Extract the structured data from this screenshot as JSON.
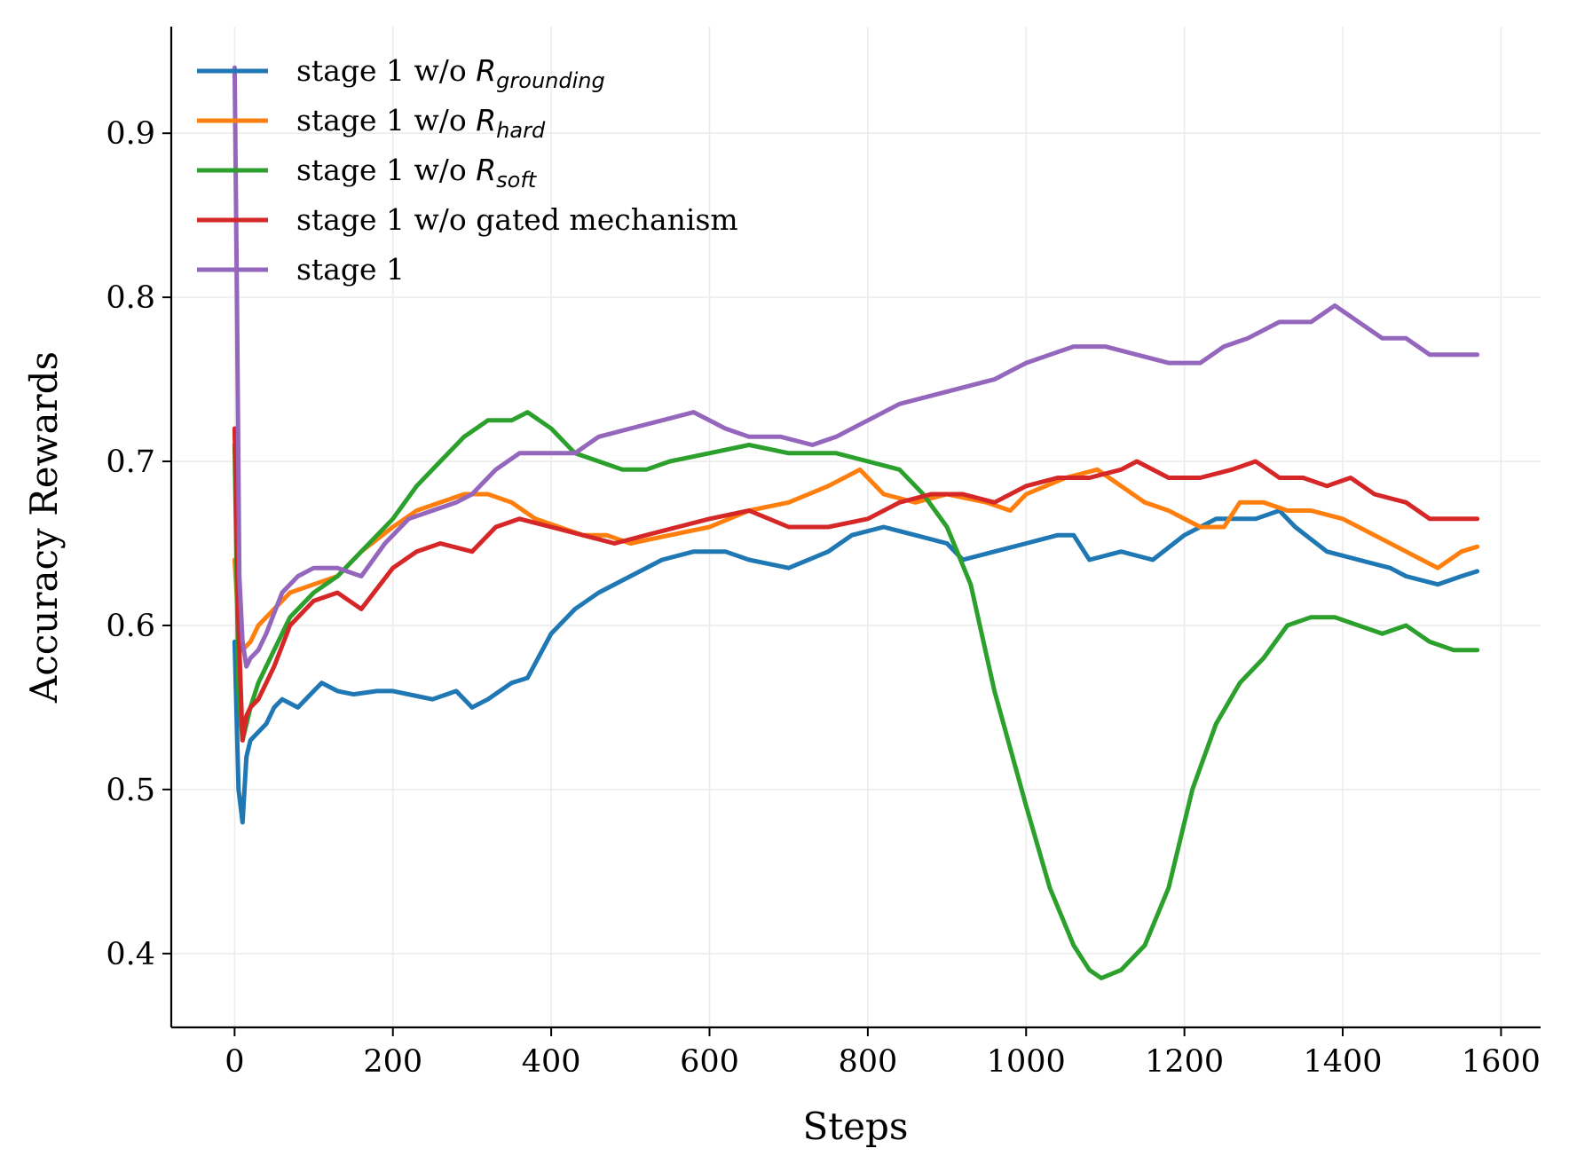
{
  "chart_data": {
    "type": "line",
    "title": "",
    "xlabel": "Steps",
    "ylabel": "Accuracy Rewards",
    "xlim": [
      -80,
      1650
    ],
    "ylim": [
      0.355,
      0.965
    ],
    "xticks": [
      0,
      200,
      400,
      600,
      800,
      1000,
      1200,
      1400,
      1600
    ],
    "xtick_labels": [
      "0",
      "200",
      "400",
      "600",
      "800",
      "1000",
      "1200",
      "1400",
      "1600"
    ],
    "yticks": [
      0.4,
      0.5,
      0.6,
      0.7,
      0.8,
      0.9
    ],
    "ytick_labels": [
      "0.4",
      "0.5",
      "0.6",
      "0.7",
      "0.8",
      "0.9"
    ],
    "grid": true,
    "legend_position": "top-left",
    "series": [
      {
        "name": "stage 1 w/o R_grounding",
        "legend_prefix": "stage 1 w/o ",
        "legend_math": "R",
        "legend_subscript": "grounding",
        "color": "#1f77b4",
        "x": [
          0,
          5,
          10,
          15,
          20,
          30,
          40,
          50,
          60,
          80,
          100,
          110,
          130,
          150,
          180,
          200,
          230,
          250,
          280,
          300,
          320,
          350,
          370,
          400,
          430,
          460,
          500,
          540,
          580,
          620,
          650,
          700,
          750,
          780,
          820,
          860,
          900,
          920,
          960,
          1000,
          1040,
          1060,
          1080,
          1120,
          1160,
          1200,
          1240,
          1270,
          1290,
          1320,
          1340,
          1380,
          1420,
          1460,
          1480,
          1520,
          1550,
          1570
        ],
        "values": [
          0.59,
          0.5,
          0.48,
          0.52,
          0.53,
          0.535,
          0.54,
          0.55,
          0.555,
          0.55,
          0.56,
          0.565,
          0.56,
          0.558,
          0.56,
          0.56,
          0.557,
          0.555,
          0.56,
          0.55,
          0.555,
          0.565,
          0.568,
          0.595,
          0.61,
          0.62,
          0.63,
          0.64,
          0.645,
          0.645,
          0.64,
          0.635,
          0.645,
          0.655,
          0.66,
          0.655,
          0.65,
          0.64,
          0.645,
          0.65,
          0.655,
          0.655,
          0.64,
          0.645,
          0.64,
          0.655,
          0.665,
          0.665,
          0.665,
          0.67,
          0.66,
          0.645,
          0.64,
          0.635,
          0.63,
          0.625,
          0.63,
          0.633
        ]
      },
      {
        "name": "stage 1 w/o R_hard",
        "legend_prefix": "stage 1 w/o ",
        "legend_math": "R",
        "legend_subscript": "hard",
        "color": "#ff7f0e",
        "x": [
          0,
          5,
          10,
          20,
          30,
          50,
          70,
          100,
          130,
          160,
          200,
          230,
          260,
          290,
          320,
          350,
          380,
          410,
          440,
          470,
          500,
          550,
          600,
          650,
          700,
          750,
          790,
          820,
          860,
          900,
          950,
          980,
          1000,
          1050,
          1090,
          1120,
          1150,
          1180,
          1220,
          1250,
          1270,
          1300,
          1330,
          1360,
          1400,
          1440,
          1480,
          1520,
          1550,
          1570
        ],
        "values": [
          0.64,
          0.6,
          0.585,
          0.59,
          0.6,
          0.61,
          0.62,
          0.625,
          0.63,
          0.645,
          0.66,
          0.67,
          0.675,
          0.68,
          0.68,
          0.675,
          0.665,
          0.66,
          0.655,
          0.655,
          0.65,
          0.655,
          0.66,
          0.67,
          0.675,
          0.685,
          0.695,
          0.68,
          0.675,
          0.68,
          0.675,
          0.67,
          0.68,
          0.69,
          0.695,
          0.685,
          0.675,
          0.67,
          0.66,
          0.66,
          0.675,
          0.675,
          0.67,
          0.67,
          0.665,
          0.655,
          0.645,
          0.635,
          0.645,
          0.648
        ]
      },
      {
        "name": "stage 1 w/o R_soft",
        "legend_prefix": "stage 1 w/o ",
        "legend_math": "R",
        "legend_subscript": "soft",
        "color": "#2ca02c",
        "x": [
          0,
          5,
          10,
          20,
          30,
          50,
          70,
          100,
          130,
          160,
          200,
          230,
          260,
          290,
          320,
          350,
          370,
          400,
          430,
          460,
          490,
          520,
          550,
          600,
          650,
          700,
          760,
          800,
          840,
          870,
          900,
          930,
          960,
          1000,
          1030,
          1060,
          1080,
          1095,
          1120,
          1150,
          1180,
          1210,
          1240,
          1270,
          1300,
          1330,
          1360,
          1390,
          1420,
          1450,
          1480,
          1510,
          1540,
          1570
        ],
        "values": [
          0.71,
          0.56,
          0.53,
          0.55,
          0.565,
          0.585,
          0.605,
          0.62,
          0.63,
          0.645,
          0.665,
          0.685,
          0.7,
          0.715,
          0.725,
          0.725,
          0.73,
          0.72,
          0.705,
          0.7,
          0.695,
          0.695,
          0.7,
          0.705,
          0.71,
          0.705,
          0.705,
          0.7,
          0.695,
          0.68,
          0.66,
          0.625,
          0.56,
          0.49,
          0.44,
          0.405,
          0.39,
          0.385,
          0.39,
          0.405,
          0.44,
          0.5,
          0.54,
          0.565,
          0.58,
          0.6,
          0.605,
          0.605,
          0.6,
          0.595,
          0.6,
          0.59,
          0.585,
          0.585
        ]
      },
      {
        "name": "stage 1 w/o gated mechanism",
        "legend_prefix": "stage 1 w/o gated mechanism",
        "legend_math": "",
        "legend_subscript": "",
        "color": "#d62728",
        "x": [
          0,
          5,
          10,
          15,
          20,
          30,
          50,
          70,
          100,
          130,
          160,
          200,
          230,
          260,
          300,
          330,
          360,
          400,
          440,
          480,
          520,
          560,
          600,
          650,
          700,
          750,
          800,
          840,
          880,
          920,
          960,
          1000,
          1040,
          1080,
          1120,
          1140,
          1180,
          1220,
          1260,
          1290,
          1320,
          1350,
          1380,
          1410,
          1440,
          1480,
          1510,
          1540,
          1570
        ],
        "values": [
          0.72,
          0.6,
          0.53,
          0.545,
          0.55,
          0.555,
          0.575,
          0.6,
          0.615,
          0.62,
          0.61,
          0.635,
          0.645,
          0.65,
          0.645,
          0.66,
          0.665,
          0.66,
          0.655,
          0.65,
          0.655,
          0.66,
          0.665,
          0.67,
          0.66,
          0.66,
          0.665,
          0.675,
          0.68,
          0.68,
          0.675,
          0.685,
          0.69,
          0.69,
          0.695,
          0.7,
          0.69,
          0.69,
          0.695,
          0.7,
          0.69,
          0.69,
          0.685,
          0.69,
          0.68,
          0.675,
          0.665,
          0.665,
          0.665
        ]
      },
      {
        "name": "stage 1",
        "legend_prefix": "stage 1",
        "legend_math": "",
        "legend_subscript": "",
        "color": "#9467bd",
        "x": [
          0,
          3,
          6,
          10,
          15,
          20,
          30,
          40,
          60,
          80,
          100,
          130,
          160,
          190,
          220,
          250,
          280,
          300,
          330,
          360,
          400,
          430,
          460,
          500,
          540,
          580,
          620,
          650,
          690,
          730,
          760,
          800,
          840,
          880,
          920,
          960,
          1000,
          1030,
          1060,
          1100,
          1140,
          1180,
          1220,
          1250,
          1280,
          1320,
          1360,
          1390,
          1420,
          1450,
          1480,
          1510,
          1540,
          1570
        ],
        "values": [
          0.94,
          0.8,
          0.63,
          0.59,
          0.575,
          0.58,
          0.585,
          0.595,
          0.62,
          0.63,
          0.635,
          0.635,
          0.63,
          0.65,
          0.665,
          0.67,
          0.675,
          0.68,
          0.695,
          0.705,
          0.705,
          0.705,
          0.715,
          0.72,
          0.725,
          0.73,
          0.72,
          0.715,
          0.715,
          0.71,
          0.715,
          0.725,
          0.735,
          0.74,
          0.745,
          0.75,
          0.76,
          0.765,
          0.77,
          0.77,
          0.765,
          0.76,
          0.76,
          0.77,
          0.775,
          0.785,
          0.785,
          0.795,
          0.785,
          0.775,
          0.775,
          0.765,
          0.765,
          0.765
        ]
      }
    ]
  }
}
